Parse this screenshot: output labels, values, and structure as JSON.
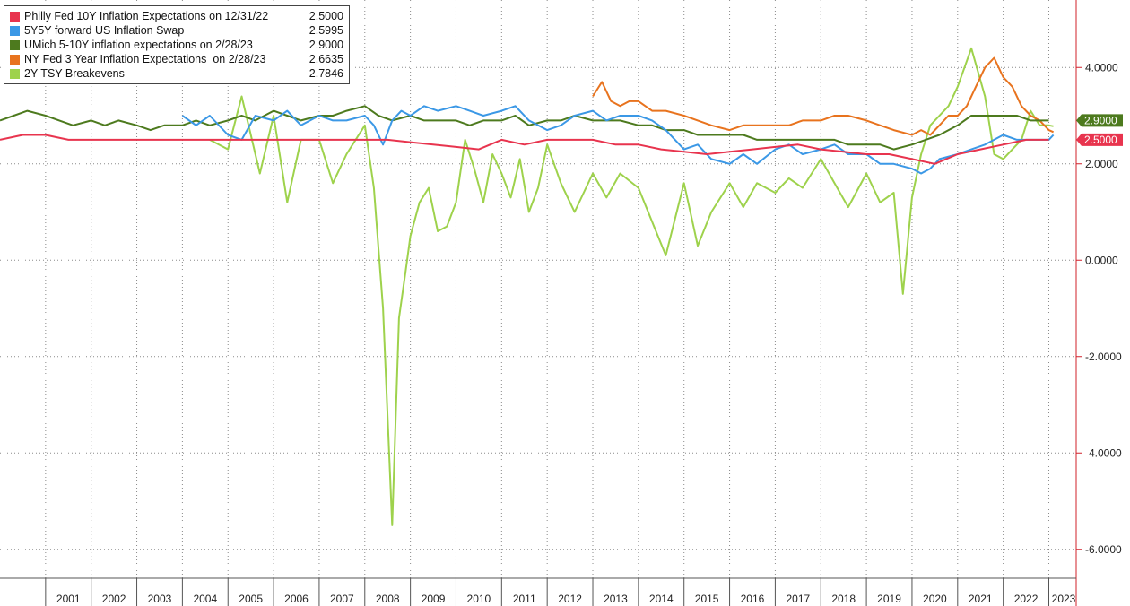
{
  "chart_data": {
    "type": "line",
    "title": "",
    "xlabel": "",
    "ylabel": "",
    "x_range": [
      2000.0,
      2023.6
    ],
    "ylim": [
      -6.6,
      5.4
    ],
    "y_ticks": [
      {
        "value": 4,
        "label": "4.0000"
      },
      {
        "value": 2,
        "label": "2.0000"
      },
      {
        "value": 0,
        "label": "0.0000"
      },
      {
        "value": -2,
        "label": "-2.0000"
      },
      {
        "value": -4,
        "label": "-4.0000"
      },
      {
        "value": -6,
        "label": "-6.0000"
      }
    ],
    "x_ticks": [
      "2001",
      "2002",
      "2003",
      "2004",
      "2005",
      "2006",
      "2007",
      "2008",
      "2009",
      "2010",
      "2011",
      "2012",
      "2013",
      "2014",
      "2015",
      "2016",
      "2017",
      "2018",
      "2019",
      "2020",
      "2021",
      "2022",
      "2023"
    ],
    "grid": true,
    "legend_position": "top-left",
    "series": [
      {
        "name": "Philly Fed 10Y Inflation Expectations on 12/31/22",
        "last_value": "2.5000",
        "color": "#e8344e",
        "x": [
          2000.0,
          2000.5,
          2001.0,
          2001.5,
          2002.0,
          2003.0,
          2004.0,
          2005.0,
          2006.0,
          2007.0,
          2007.5,
          2008.0,
          2008.5,
          2009.0,
          2009.5,
          2010.0,
          2010.5,
          2011.0,
          2011.5,
          2012.0,
          2012.5,
          2013.0,
          2013.5,
          2014.0,
          2014.5,
          2015.0,
          2015.5,
          2016.0,
          2016.5,
          2017.0,
          2017.5,
          2018.0,
          2018.5,
          2019.0,
          2019.5,
          2020.0,
          2020.5,
          2021.0,
          2021.5,
          2022.0,
          2022.5,
          2023.0
        ],
        "values": [
          2.5,
          2.6,
          2.6,
          2.5,
          2.5,
          2.5,
          2.5,
          2.5,
          2.5,
          2.5,
          2.5,
          2.5,
          2.5,
          2.45,
          2.4,
          2.35,
          2.3,
          2.5,
          2.4,
          2.5,
          2.5,
          2.5,
          2.4,
          2.4,
          2.3,
          2.25,
          2.2,
          2.25,
          2.3,
          2.35,
          2.4,
          2.3,
          2.25,
          2.2,
          2.2,
          2.1,
          2.0,
          2.2,
          2.3,
          2.4,
          2.5,
          2.5
        ]
      },
      {
        "name": "5Y5Y forward US Inflation Swap",
        "last_value": "2.5995",
        "color": "#3b98e6",
        "x": [
          2004.0,
          2004.3,
          2004.6,
          2005.0,
          2005.3,
          2005.6,
          2006.0,
          2006.3,
          2006.6,
          2007.0,
          2007.3,
          2007.6,
          2008.0,
          2008.2,
          2008.4,
          2008.6,
          2008.8,
          2009.0,
          2009.3,
          2009.6,
          2010.0,
          2010.3,
          2010.6,
          2011.0,
          2011.3,
          2011.6,
          2012.0,
          2012.3,
          2012.6,
          2013.0,
          2013.3,
          2013.6,
          2014.0,
          2014.3,
          2014.6,
          2015.0,
          2015.3,
          2015.6,
          2016.0,
          2016.3,
          2016.6,
          2017.0,
          2017.3,
          2017.6,
          2018.0,
          2018.3,
          2018.6,
          2019.0,
          2019.3,
          2019.6,
          2020.0,
          2020.2,
          2020.4,
          2020.6,
          2021.0,
          2021.3,
          2021.6,
          2022.0,
          2022.3,
          2022.6,
          2023.0,
          2023.1
        ],
        "values": [
          3.0,
          2.8,
          3.0,
          2.6,
          2.5,
          3.0,
          2.9,
          3.1,
          2.8,
          3.0,
          2.9,
          2.9,
          3.0,
          2.8,
          2.4,
          2.9,
          3.1,
          3.0,
          3.2,
          3.1,
          3.2,
          3.1,
          3.0,
          3.1,
          3.2,
          2.9,
          2.7,
          2.8,
          3.0,
          3.1,
          2.9,
          3.0,
          3.0,
          2.9,
          2.7,
          2.3,
          2.4,
          2.1,
          2.0,
          2.2,
          2.0,
          2.3,
          2.4,
          2.2,
          2.3,
          2.4,
          2.2,
          2.2,
          2.0,
          2.0,
          1.9,
          1.8,
          1.9,
          2.1,
          2.2,
          2.3,
          2.4,
          2.6,
          2.5,
          2.5,
          2.5,
          2.6
        ]
      },
      {
        "name": "UMich 5-10Y inflation expectations on 2/28/23",
        "last_value": "2.9000",
        "color": "#4d7a1e",
        "x": [
          2000.0,
          2000.3,
          2000.6,
          2001.0,
          2001.3,
          2001.6,
          2002.0,
          2002.3,
          2002.6,
          2003.0,
          2003.3,
          2003.6,
          2004.0,
          2004.3,
          2004.6,
          2005.0,
          2005.3,
          2005.6,
          2006.0,
          2006.3,
          2006.6,
          2007.0,
          2007.3,
          2007.6,
          2008.0,
          2008.3,
          2008.6,
          2009.0,
          2009.3,
          2009.6,
          2010.0,
          2010.3,
          2010.6,
          2011.0,
          2011.3,
          2011.6,
          2012.0,
          2012.3,
          2012.6,
          2013.0,
          2013.3,
          2013.6,
          2014.0,
          2014.3,
          2014.6,
          2015.0,
          2015.3,
          2015.6,
          2016.0,
          2016.3,
          2016.6,
          2017.0,
          2017.3,
          2017.6,
          2018.0,
          2018.3,
          2018.6,
          2019.0,
          2019.3,
          2019.6,
          2020.0,
          2020.3,
          2020.6,
          2021.0,
          2021.3,
          2021.6,
          2022.0,
          2022.3,
          2022.6,
          2023.0
        ],
        "values": [
          2.9,
          3.0,
          3.1,
          3.0,
          2.9,
          2.8,
          2.9,
          2.8,
          2.9,
          2.8,
          2.7,
          2.8,
          2.8,
          2.9,
          2.8,
          2.9,
          3.0,
          2.9,
          3.1,
          3.0,
          2.9,
          3.0,
          3.0,
          3.1,
          3.2,
          3.0,
          2.9,
          3.0,
          2.9,
          2.9,
          2.9,
          2.8,
          2.9,
          2.9,
          3.0,
          2.8,
          2.9,
          2.9,
          3.0,
          2.9,
          2.9,
          2.9,
          2.8,
          2.8,
          2.7,
          2.7,
          2.6,
          2.6,
          2.6,
          2.6,
          2.5,
          2.5,
          2.5,
          2.5,
          2.5,
          2.5,
          2.4,
          2.4,
          2.4,
          2.3,
          2.4,
          2.5,
          2.6,
          2.8,
          3.0,
          3.0,
          3.0,
          3.0,
          2.9,
          2.9
        ]
      },
      {
        "name": "NY Fed 3 Year Inflation Expectations  on 2/28/23",
        "last_value": "2.6635",
        "color": "#e8731e",
        "x": [
          2013.0,
          2013.2,
          2013.4,
          2013.6,
          2013.8,
          2014.0,
          2014.3,
          2014.6,
          2015.0,
          2015.3,
          2015.6,
          2016.0,
          2016.3,
          2016.6,
          2017.0,
          2017.3,
          2017.6,
          2018.0,
          2018.3,
          2018.6,
          2019.0,
          2019.3,
          2019.6,
          2020.0,
          2020.2,
          2020.4,
          2020.6,
          2020.8,
          2021.0,
          2021.2,
          2021.4,
          2021.6,
          2021.8,
          2022.0,
          2022.2,
          2022.4,
          2022.6,
          2022.8,
          2023.0,
          2023.1
        ],
        "values": [
          3.4,
          3.7,
          3.3,
          3.2,
          3.3,
          3.3,
          3.1,
          3.1,
          3.0,
          2.9,
          2.8,
          2.7,
          2.8,
          2.8,
          2.8,
          2.8,
          2.9,
          2.9,
          3.0,
          3.0,
          2.9,
          2.8,
          2.7,
          2.6,
          2.7,
          2.6,
          2.8,
          3.0,
          3.0,
          3.2,
          3.6,
          4.0,
          4.2,
          3.8,
          3.6,
          3.2,
          3.0,
          2.9,
          2.7,
          2.66
        ]
      },
      {
        "name": "2Y TSY Breakevens",
        "last_value": "2.7846",
        "color": "#9ed24c",
        "x": [
          2004.6,
          2005.0,
          2005.3,
          2005.5,
          2005.7,
          2006.0,
          2006.3,
          2006.6,
          2007.0,
          2007.3,
          2007.6,
          2008.0,
          2008.2,
          2008.4,
          2008.6,
          2008.75,
          2008.9,
          2009.0,
          2009.2,
          2009.4,
          2009.6,
          2009.8,
          2010.0,
          2010.2,
          2010.4,
          2010.6,
          2010.8,
          2011.0,
          2011.2,
          2011.4,
          2011.6,
          2011.8,
          2012.0,
          2012.3,
          2012.6,
          2013.0,
          2013.3,
          2013.6,
          2014.0,
          2014.3,
          2014.6,
          2015.0,
          2015.3,
          2015.6,
          2016.0,
          2016.3,
          2016.6,
          2017.0,
          2017.3,
          2017.6,
          2018.0,
          2018.3,
          2018.6,
          2019.0,
          2019.3,
          2019.6,
          2019.8,
          2020.0,
          2020.2,
          2020.4,
          2020.6,
          2020.8,
          2021.0,
          2021.3,
          2021.6,
          2021.8,
          2022.0,
          2022.2,
          2022.4,
          2022.6,
          2022.8,
          2023.0,
          2023.1
        ],
        "values": [
          2.5,
          2.3,
          3.4,
          2.6,
          1.8,
          3.0,
          1.2,
          2.5,
          2.5,
          1.6,
          2.2,
          2.8,
          1.5,
          -1.0,
          -5.5,
          -1.2,
          -0.2,
          0.5,
          1.2,
          1.5,
          0.6,
          0.7,
          1.2,
          2.5,
          1.9,
          1.2,
          2.2,
          1.8,
          1.3,
          2.1,
          1.0,
          1.5,
          2.4,
          1.6,
          1.0,
          1.8,
          1.3,
          1.8,
          1.5,
          0.8,
          0.1,
          1.6,
          0.3,
          1.0,
          1.6,
          1.1,
          1.6,
          1.4,
          1.7,
          1.5,
          2.1,
          1.6,
          1.1,
          1.8,
          1.2,
          1.4,
          -0.7,
          1.3,
          2.2,
          2.8,
          3.0,
          3.2,
          3.6,
          4.4,
          3.4,
          2.2,
          2.1,
          2.3,
          2.5,
          3.1,
          2.8,
          2.8,
          2.78
        ]
      }
    ]
  }
}
